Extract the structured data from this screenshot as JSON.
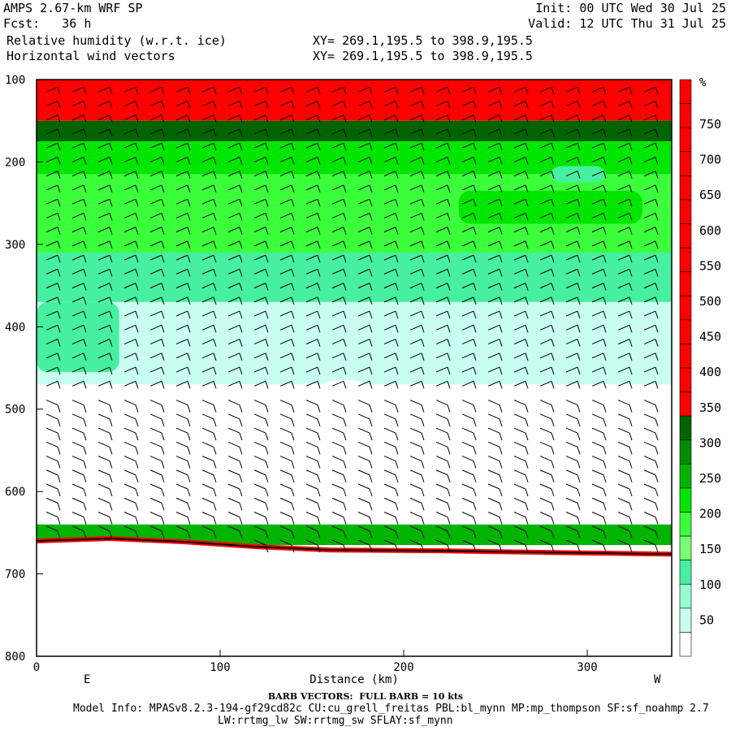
{
  "header": {
    "model": "AMPS 2.67-km WRF SP",
    "init": "Init: 00 UTC Wed 30 Jul 25",
    "fcst": "Fcst:   36 h",
    "valid": "Valid: 12 UTC Thu 31 Jul 25",
    "field1": "Relative humidity (w.r.t. ice)",
    "field2": "Horizontal wind vectors",
    "xy1": "XY= 269.1,195.5 to 398.9,195.5",
    "xy2": "XY= 269.1,195.5 to 398.9,195.5"
  },
  "footer": {
    "barb": "BARB VECTORS:  FULL BARB = 10 kts",
    "model_info": "Model Info: MPASv8.2.3-194-gf29cd82c CU:cu_grell_freitas PBL:bl_mynn MP:mp_thompson SF:sf_noahmp 2.7",
    "model_info2": "LW:rrtmg_lw SW:rrtmg_sw SFLAY:sf_mynn"
  },
  "colors": {
    "red": "#ff0000",
    "dark_green": "#006400",
    "green1": "#00b400",
    "green2": "#00e600",
    "green3": "#3cff3c",
    "green4": "#78ff78",
    "aqua1": "#46f0a0",
    "aqua2": "#96ffd2",
    "aqua3": "#c8fff0",
    "white": "#ffffff"
  },
  "chart_data": {
    "type": "heatmap",
    "title": "Relative humidity (w.r.t. ice)",
    "xlabel": "Distance (km)",
    "ylabel": "",
    "x_ticks": [
      0,
      100,
      200,
      300
    ],
    "y_ticks": [
      100,
      200,
      300,
      400,
      500,
      600,
      700,
      800
    ],
    "xlim": [
      0,
      346
    ],
    "ylim": [
      100,
      800
    ],
    "y_inverted": true,
    "x_end_labels": [
      "E",
      "W"
    ],
    "colorbar": {
      "unit": "%",
      "tick_labels": [
        "750",
        "700",
        "650",
        "600",
        "550",
        "500",
        "450",
        "400",
        "350",
        "300",
        "250",
        "200",
        "150",
        "100",
        "50"
      ]
    },
    "layers": [
      {
        "name": "top saturated band",
        "p_range": [
          100,
          150
        ],
        "color": "red"
      },
      {
        "name": "dark green band",
        "p_range": [
          150,
          175
        ],
        "color": "dark_green"
      },
      {
        "name": "moist green band",
        "p_range": [
          175,
          215
        ],
        "color": "green2"
      },
      {
        "name": "moist layer",
        "p_range": [
          215,
          310
        ],
        "color": "green3"
      },
      {
        "name": "mid aqua layer",
        "p_range": [
          310,
          370
        ],
        "color": "aqua1"
      },
      {
        "name": "dry mid layer",
        "p_range": [
          370,
          470
        ],
        "color": "aqua3"
      },
      {
        "name": "lower troposphere",
        "p_range": [
          470,
          640
        ],
        "color": "white"
      },
      {
        "name": "near-surface moist band",
        "p_range": [
          640,
          665
        ],
        "color": "green1"
      }
    ],
    "terrain_pressure": [
      {
        "x": 0,
        "p": 660
      },
      {
        "x": 40,
        "p": 657
      },
      {
        "x": 80,
        "p": 661
      },
      {
        "x": 120,
        "p": 667
      },
      {
        "x": 160,
        "p": 671
      },
      {
        "x": 220,
        "p": 672
      },
      {
        "x": 280,
        "p": 674
      },
      {
        "x": 346,
        "p": 676
      }
    ]
  }
}
